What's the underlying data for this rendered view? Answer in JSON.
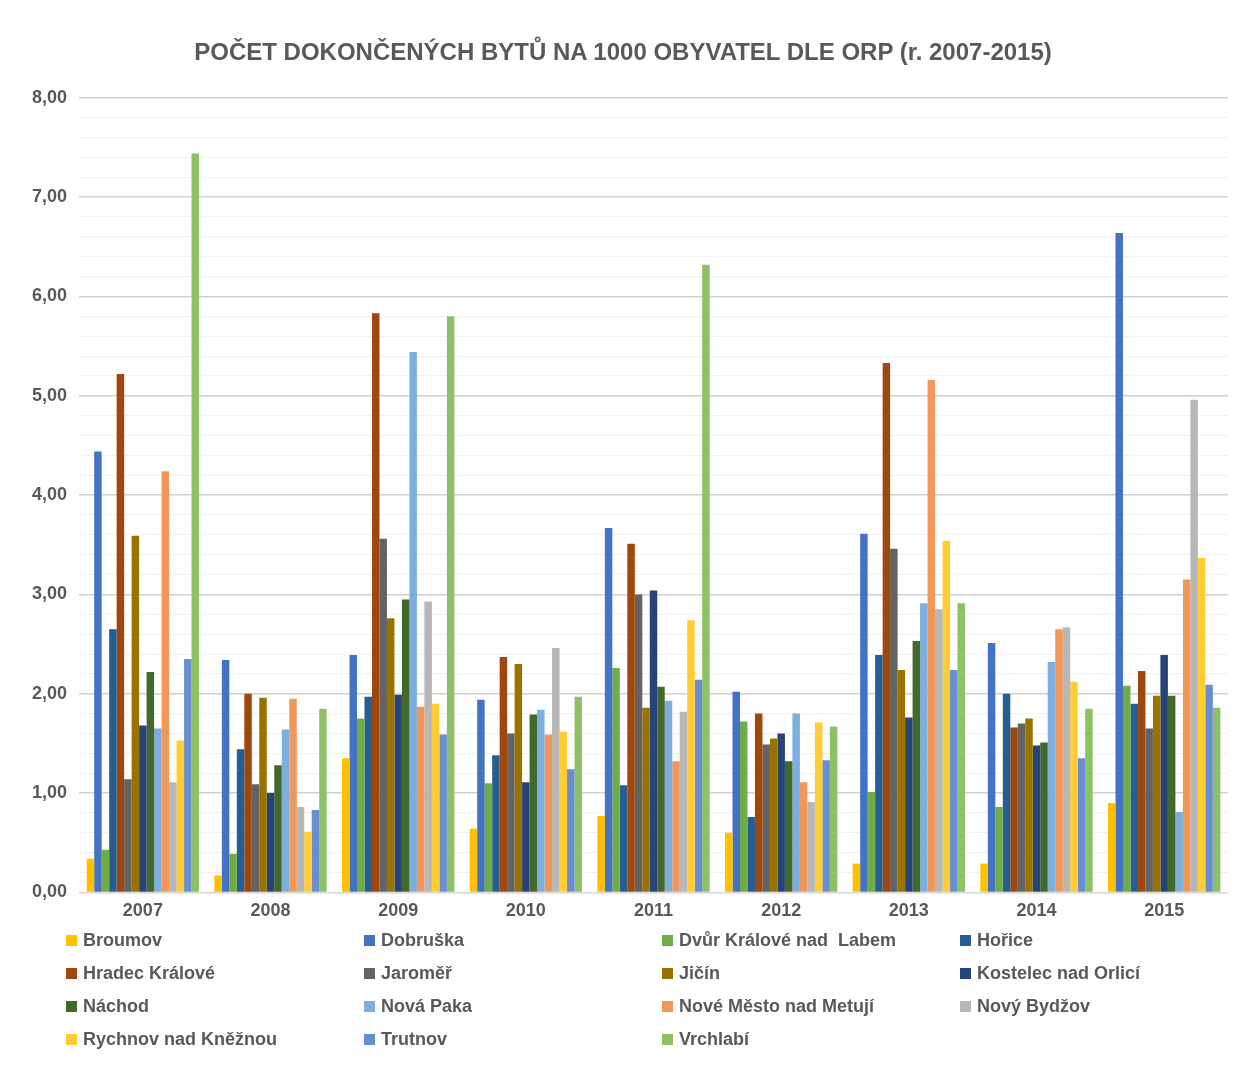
{
  "chart_data": {
    "type": "bar",
    "title": "POČET DOKONČENÝCH BYTŮ NA 1000 OBYVATEL DLE ORP (r. 2007-2015)",
    "categories": [
      "2007",
      "2008",
      "2009",
      "2010",
      "2011",
      "2012",
      "2013",
      "2014",
      "2015"
    ],
    "series": [
      {
        "name": "Broumov",
        "color": "#ffc000",
        "values": [
          0.34,
          0.17,
          1.35,
          0.64,
          0.77,
          0.6,
          0.29,
          0.29,
          0.9
        ]
      },
      {
        "name": "Dobruška",
        "color": "#4472c4",
        "values": [
          4.44,
          2.34,
          2.39,
          1.94,
          3.67,
          2.02,
          3.61,
          2.51,
          6.64
        ]
      },
      {
        "name": "Dvůr Králové nad  Labem",
        "color": "#70ad47",
        "values": [
          0.43,
          0.39,
          1.75,
          1.1,
          2.26,
          1.72,
          1.01,
          0.86,
          2.08
        ]
      },
      {
        "name": "Hořice",
        "color": "#255e91",
        "values": [
          2.65,
          1.44,
          1.97,
          1.38,
          1.08,
          0.76,
          2.39,
          2.0,
          1.9
        ]
      },
      {
        "name": "Hradec Králové",
        "color": "#9e480e",
        "values": [
          5.22,
          2.0,
          5.83,
          2.37,
          3.51,
          1.8,
          5.33,
          1.66,
          2.23
        ]
      },
      {
        "name": "Jaroměř",
        "color": "#636363",
        "values": [
          1.14,
          1.09,
          3.56,
          1.6,
          3.0,
          1.49,
          3.46,
          1.7,
          1.65
        ]
      },
      {
        "name": "Jičín",
        "color": "#997300",
        "values": [
          3.59,
          1.96,
          2.76,
          2.3,
          1.86,
          1.55,
          2.24,
          1.75,
          1.98
        ]
      },
      {
        "name": "Kostelec nad Orlicí",
        "color": "#264478",
        "values": [
          1.68,
          1.0,
          1.99,
          1.11,
          3.04,
          1.6,
          1.76,
          1.48,
          2.39
        ]
      },
      {
        "name": "Náchod",
        "color": "#43682b",
        "values": [
          2.22,
          1.28,
          2.95,
          1.79,
          2.07,
          1.32,
          2.53,
          1.51,
          1.98
        ]
      },
      {
        "name": "Nová Paka",
        "color": "#7cafdd",
        "values": [
          1.65,
          1.64,
          5.44,
          1.84,
          1.93,
          1.8,
          2.91,
          2.32,
          0.81
        ]
      },
      {
        "name": "Nové Město nad Metují",
        "color": "#f1975a",
        "values": [
          4.24,
          1.95,
          1.87,
          1.59,
          1.32,
          1.11,
          5.16,
          2.65,
          3.15
        ]
      },
      {
        "name": "Nový Bydžov",
        "color": "#b7b7b7",
        "values": [
          1.11,
          0.86,
          2.93,
          2.46,
          1.82,
          0.91,
          2.85,
          2.67,
          4.96
        ]
      },
      {
        "name": "Rychnov nad Kněžnou",
        "color": "#ffcd33",
        "values": [
          1.53,
          0.61,
          1.9,
          1.62,
          2.74,
          1.71,
          3.54,
          2.12,
          3.37
        ]
      },
      {
        "name": "Trutnov",
        "color": "#698ed0",
        "values": [
          2.35,
          0.83,
          1.59,
          1.24,
          2.14,
          1.33,
          2.24,
          1.35,
          2.09
        ]
      },
      {
        "name": "Vrchlabí",
        "color": "#8cc168",
        "values": [
          7.44,
          1.85,
          5.8,
          1.97,
          6.32,
          1.67,
          2.91,
          1.85,
          1.86
        ]
      }
    ],
    "ylim": [
      0,
      8
    ],
    "yticks": [
      {
        "value": 0,
        "label": "0,00"
      },
      {
        "value": 0.2,
        "label": null
      },
      {
        "value": 0.4,
        "label": null
      },
      {
        "value": 0.6,
        "label": null
      },
      {
        "value": 0.8,
        "label": null
      },
      {
        "value": 1,
        "label": "1,00"
      },
      {
        "value": 1.2,
        "label": null
      },
      {
        "value": 1.4,
        "label": null
      },
      {
        "value": 1.6,
        "label": null
      },
      {
        "value": 1.8,
        "label": null
      },
      {
        "value": 2,
        "label": "2,00"
      },
      {
        "value": 2.2,
        "label": null
      },
      {
        "value": 2.4,
        "label": null
      },
      {
        "value": 2.6,
        "label": null
      },
      {
        "value": 2.8,
        "label": null
      },
      {
        "value": 3,
        "label": "3,00"
      },
      {
        "value": 3.2,
        "label": null
      },
      {
        "value": 3.4,
        "label": null
      },
      {
        "value": 3.6,
        "label": null
      },
      {
        "value": 3.8,
        "label": null
      },
      {
        "value": 4,
        "label": "4,00"
      },
      {
        "value": 4.2,
        "label": null
      },
      {
        "value": 4.4,
        "label": null
      },
      {
        "value": 4.6,
        "label": null
      },
      {
        "value": 4.8,
        "label": null
      },
      {
        "value": 5,
        "label": "5,00"
      },
      {
        "value": 5.2,
        "label": null
      },
      {
        "value": 5.4,
        "label": null
      },
      {
        "value": 5.6,
        "label": null
      },
      {
        "value": 5.8,
        "label": null
      },
      {
        "value": 6,
        "label": "6,00"
      },
      {
        "value": 6.2,
        "label": null
      },
      {
        "value": 6.4,
        "label": null
      },
      {
        "value": 6.6,
        "label": null
      },
      {
        "value": 6.8,
        "label": null
      },
      {
        "value": 7,
        "label": "7,00"
      },
      {
        "value": 7.2,
        "label": null
      },
      {
        "value": 7.4,
        "label": null
      },
      {
        "value": 7.6,
        "label": null
      },
      {
        "value": 7.8,
        "label": null
      },
      {
        "value": 8,
        "label": "8,00"
      }
    ],
    "grid": "y",
    "legend": "bottom"
  }
}
